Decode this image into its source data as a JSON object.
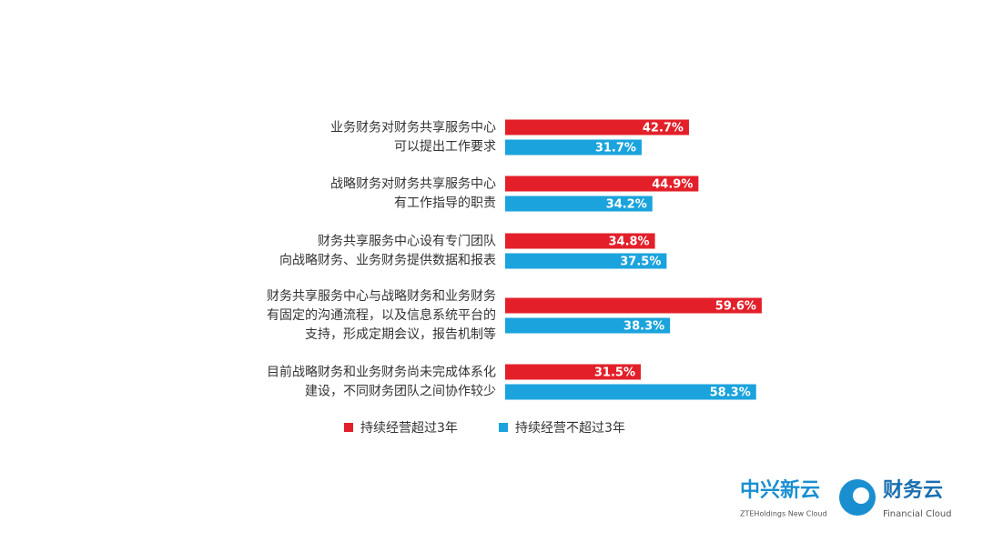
{
  "chart_data": {
    "type": "bar",
    "orientation": "horizontal",
    "categories": [
      [
        "业务财务对财务共享服务中心",
        "可以提出工作要求"
      ],
      [
        "战略财务对财务共享服务中心",
        "有工作指导的职责"
      ],
      [
        "财务共享服务中心设有专门团队",
        "向战略财务、业务财务提供数据和报表"
      ],
      [
        "财务共享服务中心与战略财务和业务财务",
        "有固定的沟通流程，以及信息系统平台的",
        "支持，形成定期会议，报告机制等"
      ],
      [
        "目前战略财务和业务财务尚未完成体系化",
        "建设，不同财务团队之间协作较少"
      ]
    ],
    "series": [
      {
        "name": "持续经营超过3年",
        "color": "#e3202a",
        "values": [
          42.7,
          44.9,
          34.8,
          59.6,
          31.5
        ],
        "value_labels": [
          "42.7%",
          "44.9%",
          "34.8%",
          "59.6%",
          "31.5%"
        ]
      },
      {
        "name": "持续经营不超过3年",
        "color": "#1ba3dd",
        "values": [
          31.7,
          34.2,
          37.5,
          38.3,
          58.3
        ],
        "value_labels": [
          "31.7%",
          "34.2%",
          "37.5%",
          "38.3%",
          "58.3%"
        ]
      }
    ]
  },
  "logo": {
    "brand": "中兴新云",
    "brand_sub": "ZTEHoldings New Cloud",
    "product": "财务云",
    "product_sub": "Financial Cloud"
  }
}
